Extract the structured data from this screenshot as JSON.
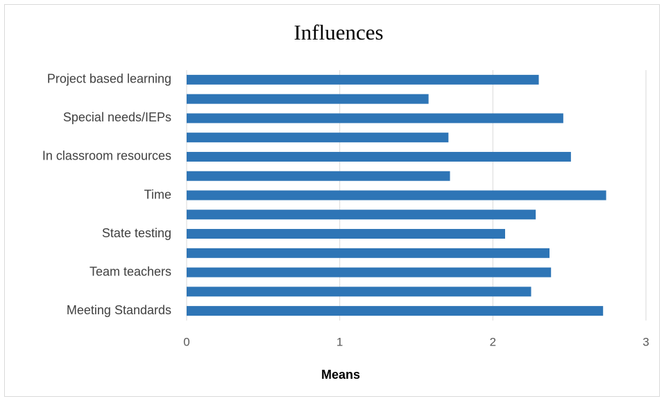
{
  "chart_data": {
    "type": "bar",
    "orientation": "horizontal",
    "title": "Influences",
    "x_label": "Means",
    "categories": [
      "Project based learning",
      null,
      "Special needs/IEPs",
      null,
      "In classroom resources",
      null,
      "Time",
      null,
      "State testing",
      null,
      "Team teachers",
      null,
      "Meeting Standards"
    ],
    "values": [
      2.3,
      1.58,
      2.46,
      1.71,
      2.51,
      1.72,
      2.74,
      2.28,
      2.08,
      2.37,
      2.38,
      2.25,
      2.72
    ],
    "color": "#2e75b6",
    "xlim": [
      0,
      3
    ],
    "xticks": [
      0,
      1,
      2,
      3
    ],
    "grid": true
  }
}
